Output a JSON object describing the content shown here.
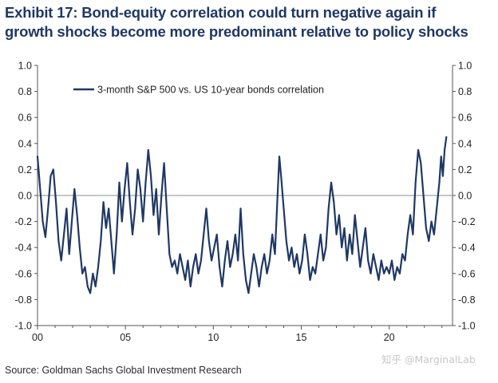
{
  "title_line1": "Exhibit 17: Bond-equity correlation could turn negative again if",
  "title_line2": "growth shocks become more predominant relative to policy shocks",
  "source": "Source: Goldman Sachs Global Investment Research",
  "watermark": "知乎 @MarginalLab",
  "colors": {
    "line": "#1f3864",
    "axis": "#555555",
    "zero_line": "#8c8c8c"
  },
  "chart_data": {
    "type": "line",
    "title": "",
    "xlabel": "",
    "ylabel": "",
    "xlim": [
      2000,
      2023.6
    ],
    "ylim": [
      -1.0,
      1.0
    ],
    "grid": false,
    "legend_position": "top-left",
    "x_ticks": [
      2000,
      2005,
      2010,
      2015,
      2020
    ],
    "x_tick_labels": [
      "00",
      "05",
      "10",
      "15",
      "20"
    ],
    "y_ticks": [
      -1.0,
      -0.8,
      -0.6,
      -0.4,
      -0.2,
      0.0,
      0.2,
      0.4,
      0.6,
      0.8,
      1.0
    ],
    "y_tick_labels": [
      "-1.0",
      "-0.8",
      "-0.6",
      "-0.4",
      "-0.2",
      "0.0",
      "0.2",
      "0.4",
      "0.6",
      "0.8",
      "1.0"
    ],
    "series": [
      {
        "name": "3-month S&P 500 vs. US 10-year bonds correlation",
        "points": [
          [
            2000.0,
            0.3
          ],
          [
            2000.15,
            0.05
          ],
          [
            2000.3,
            -0.2
          ],
          [
            2000.45,
            -0.32
          ],
          [
            2000.6,
            -0.1
          ],
          [
            2000.75,
            0.15
          ],
          [
            2000.9,
            0.2
          ],
          [
            2001.05,
            -0.05
          ],
          [
            2001.2,
            -0.35
          ],
          [
            2001.35,
            -0.5
          ],
          [
            2001.5,
            -0.3
          ],
          [
            2001.65,
            -0.1
          ],
          [
            2001.8,
            -0.45
          ],
          [
            2001.95,
            -0.2
          ],
          [
            2002.1,
            0.05
          ],
          [
            2002.25,
            -0.15
          ],
          [
            2002.4,
            -0.4
          ],
          [
            2002.55,
            -0.6
          ],
          [
            2002.7,
            -0.55
          ],
          [
            2002.85,
            -0.7
          ],
          [
            2003.0,
            -0.75
          ],
          [
            2003.15,
            -0.6
          ],
          [
            2003.3,
            -0.7
          ],
          [
            2003.45,
            -0.55
          ],
          [
            2003.6,
            -0.35
          ],
          [
            2003.75,
            -0.05
          ],
          [
            2003.9,
            -0.25
          ],
          [
            2004.05,
            -0.1
          ],
          [
            2004.2,
            -0.35
          ],
          [
            2004.35,
            -0.6
          ],
          [
            2004.5,
            -0.3
          ],
          [
            2004.65,
            0.1
          ],
          [
            2004.8,
            -0.2
          ],
          [
            2004.95,
            0.05
          ],
          [
            2005.1,
            0.25
          ],
          [
            2005.25,
            -0.05
          ],
          [
            2005.4,
            -0.3
          ],
          [
            2005.55,
            -0.1
          ],
          [
            2005.7,
            0.2
          ],
          [
            2005.85,
            0.05
          ],
          [
            2006.0,
            -0.2
          ],
          [
            2006.15,
            0.1
          ],
          [
            2006.3,
            0.35
          ],
          [
            2006.45,
            0.15
          ],
          [
            2006.6,
            -0.15
          ],
          [
            2006.75,
            0.05
          ],
          [
            2006.9,
            -0.3
          ],
          [
            2007.05,
            0.0
          ],
          [
            2007.2,
            0.25
          ],
          [
            2007.35,
            -0.1
          ],
          [
            2007.5,
            -0.45
          ],
          [
            2007.65,
            -0.55
          ],
          [
            2007.8,
            -0.5
          ],
          [
            2007.95,
            -0.6
          ],
          [
            2008.1,
            -0.45
          ],
          [
            2008.25,
            -0.55
          ],
          [
            2008.4,
            -0.65
          ],
          [
            2008.55,
            -0.5
          ],
          [
            2008.7,
            -0.7
          ],
          [
            2008.85,
            -0.55
          ],
          [
            2009.0,
            -0.45
          ],
          [
            2009.15,
            -0.6
          ],
          [
            2009.3,
            -0.5
          ],
          [
            2009.45,
            -0.3
          ],
          [
            2009.6,
            -0.1
          ],
          [
            2009.75,
            -0.35
          ],
          [
            2009.9,
            -0.5
          ],
          [
            2010.05,
            -0.4
          ],
          [
            2010.2,
            -0.3
          ],
          [
            2010.35,
            -0.55
          ],
          [
            2010.5,
            -0.7
          ],
          [
            2010.65,
            -0.5
          ],
          [
            2010.8,
            -0.35
          ],
          [
            2010.95,
            -0.55
          ],
          [
            2011.1,
            -0.45
          ],
          [
            2011.25,
            -0.3
          ],
          [
            2011.4,
            -0.5
          ],
          [
            2011.55,
            -0.1
          ],
          [
            2011.7,
            -0.45
          ],
          [
            2011.85,
            -0.65
          ],
          [
            2012.0,
            -0.75
          ],
          [
            2012.15,
            -0.6
          ],
          [
            2012.3,
            -0.45
          ],
          [
            2012.45,
            -0.55
          ],
          [
            2012.6,
            -0.7
          ],
          [
            2012.75,
            -0.55
          ],
          [
            2012.9,
            -0.45
          ],
          [
            2013.05,
            -0.6
          ],
          [
            2013.2,
            -0.5
          ],
          [
            2013.35,
            -0.3
          ],
          [
            2013.5,
            -0.45
          ],
          [
            2013.65,
            0.0
          ],
          [
            2013.75,
            0.3
          ],
          [
            2013.85,
            0.15
          ],
          [
            2014.0,
            -0.1
          ],
          [
            2014.15,
            -0.35
          ],
          [
            2014.3,
            -0.5
          ],
          [
            2014.45,
            -0.4
          ],
          [
            2014.6,
            -0.55
          ],
          [
            2014.75,
            -0.45
          ],
          [
            2014.9,
            -0.6
          ],
          [
            2015.05,
            -0.5
          ],
          [
            2015.2,
            -0.3
          ],
          [
            2015.35,
            -0.45
          ],
          [
            2015.5,
            -0.65
          ],
          [
            2015.65,
            -0.55
          ],
          [
            2015.8,
            -0.6
          ],
          [
            2015.95,
            -0.45
          ],
          [
            2016.1,
            -0.3
          ],
          [
            2016.25,
            -0.5
          ],
          [
            2016.4,
            -0.4
          ],
          [
            2016.55,
            -0.1
          ],
          [
            2016.7,
            0.1
          ],
          [
            2016.85,
            -0.05
          ],
          [
            2017.0,
            -0.3
          ],
          [
            2017.15,
            -0.15
          ],
          [
            2017.3,
            -0.4
          ],
          [
            2017.45,
            -0.25
          ],
          [
            2017.6,
            -0.5
          ],
          [
            2017.75,
            -0.3
          ],
          [
            2017.9,
            -0.45
          ],
          [
            2018.05,
            -0.15
          ],
          [
            2018.2,
            -0.35
          ],
          [
            2018.35,
            -0.55
          ],
          [
            2018.5,
            -0.4
          ],
          [
            2018.65,
            -0.25
          ],
          [
            2018.8,
            -0.5
          ],
          [
            2018.95,
            -0.6
          ],
          [
            2019.1,
            -0.45
          ],
          [
            2019.25,
            -0.55
          ],
          [
            2019.4,
            -0.65
          ],
          [
            2019.55,
            -0.5
          ],
          [
            2019.7,
            -0.6
          ],
          [
            2019.85,
            -0.55
          ],
          [
            2020.0,
            -0.6
          ],
          [
            2020.15,
            -0.5
          ],
          [
            2020.3,
            -0.65
          ],
          [
            2020.45,
            -0.55
          ],
          [
            2020.6,
            -0.6
          ],
          [
            2020.75,
            -0.45
          ],
          [
            2020.9,
            -0.5
          ],
          [
            2021.05,
            -0.3
          ],
          [
            2021.2,
            -0.15
          ],
          [
            2021.35,
            -0.3
          ],
          [
            2021.5,
            0.1
          ],
          [
            2021.65,
            0.35
          ],
          [
            2021.8,
            0.25
          ],
          [
            2021.95,
            0.0
          ],
          [
            2022.1,
            -0.25
          ],
          [
            2022.25,
            -0.35
          ],
          [
            2022.4,
            -0.2
          ],
          [
            2022.55,
            -0.3
          ],
          [
            2022.7,
            -0.1
          ],
          [
            2022.85,
            0.1
          ],
          [
            2022.95,
            0.3
          ],
          [
            2023.05,
            0.15
          ],
          [
            2023.15,
            0.35
          ],
          [
            2023.25,
            0.45
          ]
        ]
      }
    ]
  }
}
